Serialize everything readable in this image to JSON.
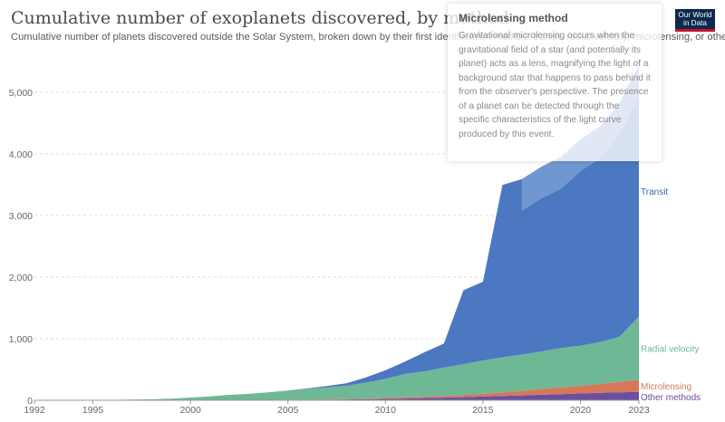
{
  "header": {
    "title": "Cumulative number of exoplanets discovered, by method",
    "subtitle": "Cumulative number of planets discovered outside the Solar System, broken down by their first identification method: transit, radial velocity, microlensing, or other.",
    "logo_text": "Our World in Data"
  },
  "tooltip": {
    "title": "Microlensing method",
    "body": "Gravitational microlensing occurs when the gravitational field of a star (and potentially its planet) acts as a lens, magnifying the light of a background star that happens to pass behind it from the observer's perspective. The presence of a planet can be detected through the specific characteristics of the light curve produced by this event."
  },
  "colors": {
    "transit": "#4c78c1",
    "transit_highlight": "#8fb0dd",
    "radial_velocity": "#6fb895",
    "microlensing": "#d5785a",
    "other": "#6a4fa0",
    "brand": "#0b2a4e",
    "brand_accent": "#c8102e"
  },
  "chart_data": {
    "type": "area",
    "stacked": true,
    "title": "Cumulative number of exoplanets discovered, by method",
    "xlim": [
      1992,
      2023
    ],
    "ylim": [
      0,
      5500
    ],
    "x_ticks": [
      1992,
      1995,
      2000,
      2005,
      2010,
      2015,
      2020,
      2023
    ],
    "y_ticks": [
      0,
      1000,
      2000,
      3000,
      4000,
      5000
    ],
    "y_tick_labels": [
      "0",
      "1,000",
      "2,000",
      "3,000",
      "4,000",
      "5,000"
    ],
    "grid": "horizontal dashed",
    "legend": "inline labels at right end",
    "x": [
      1992,
      1993,
      1994,
      1995,
      1996,
      1997,
      1998,
      1999,
      2000,
      2001,
      2002,
      2003,
      2004,
      2005,
      2006,
      2007,
      2008,
      2009,
      2010,
      2011,
      2012,
      2013,
      2014,
      2015,
      2016,
      2017,
      2018,
      2019,
      2020,
      2021,
      2022,
      2023
    ],
    "series": [
      {
        "name": "Other methods",
        "key": "other",
        "values": [
          2,
          2,
          2,
          2,
          2,
          2,
          2,
          2,
          2,
          2,
          3,
          3,
          5,
          6,
          7,
          10,
          13,
          16,
          22,
          28,
          35,
          42,
          50,
          60,
          70,
          80,
          90,
          100,
          110,
          120,
          130,
          135
        ]
      },
      {
        "name": "Microlensing",
        "key": "microlensing",
        "values": [
          0,
          0,
          0,
          0,
          0,
          0,
          0,
          0,
          0,
          0,
          0,
          0,
          1,
          3,
          4,
          6,
          8,
          11,
          15,
          19,
          24,
          29,
          37,
          45,
          57,
          73,
          93,
          110,
          125,
          145,
          170,
          195
        ]
      },
      {
        "name": "Radial velocity",
        "key": "radial_velocity",
        "values": [
          0,
          0,
          0,
          1,
          6,
          9,
          14,
          24,
          42,
          61,
          84,
          100,
          120,
          145,
          170,
          195,
          215,
          260,
          310,
          380,
          410,
          460,
          500,
          540,
          570,
          590,
          610,
          640,
          650,
          680,
          730,
          1030
        ]
      },
      {
        "name": "Transit",
        "key": "transit",
        "values": [
          0,
          0,
          0,
          0,
          0,
          0,
          0,
          0,
          0,
          0,
          1,
          2,
          3,
          5,
          10,
          20,
          40,
          85,
          140,
          200,
          310,
          390,
          1200,
          1280,
          2800,
          2850,
          3000,
          3100,
          3350,
          3500,
          3800,
          4080
        ]
      }
    ]
  }
}
